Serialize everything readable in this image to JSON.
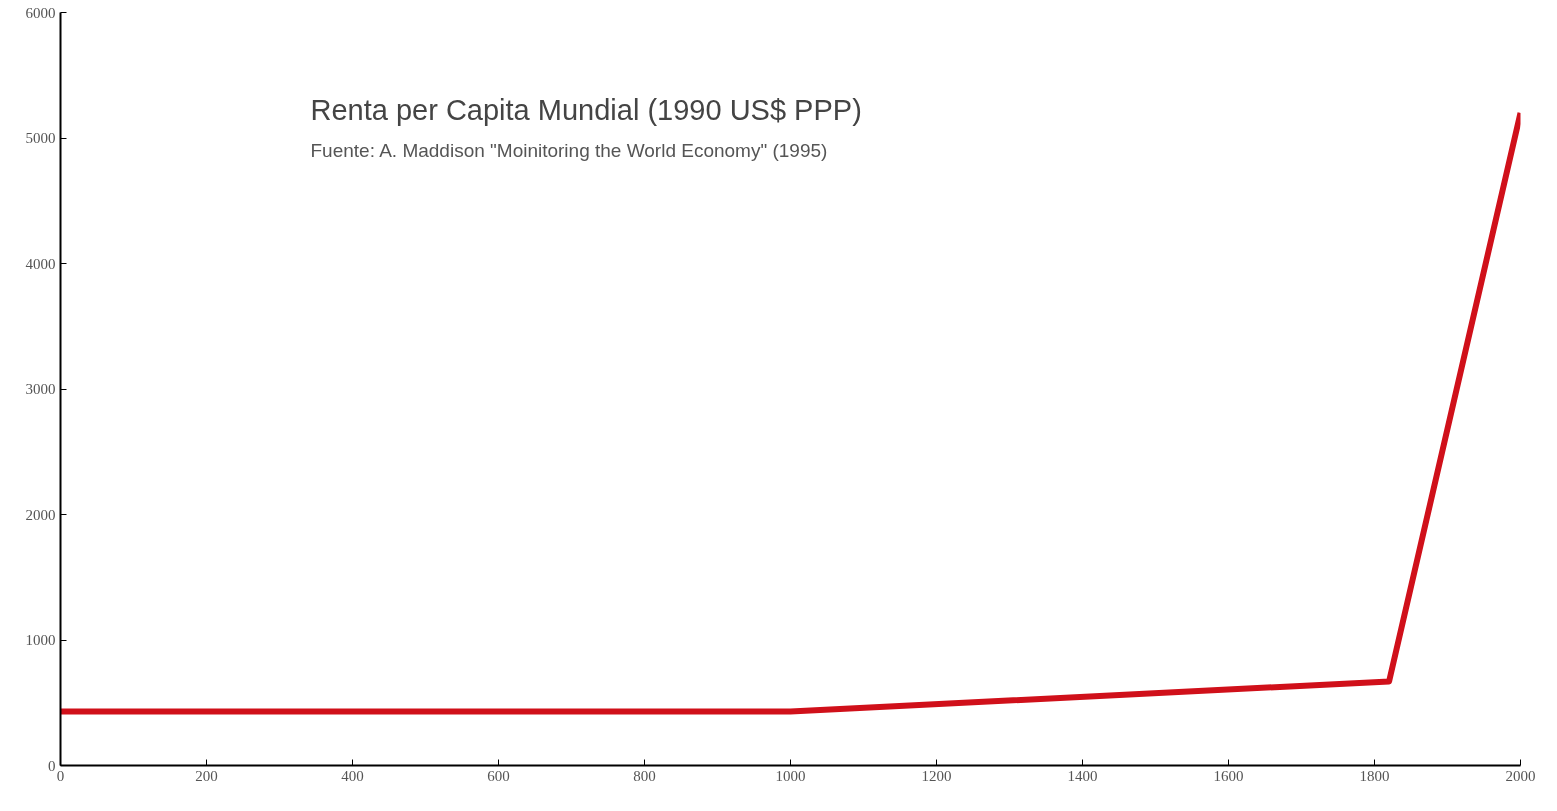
{
  "chart_data": {
    "type": "line",
    "title": "Renta per Capita Mundial (1990 US$ PPP)",
    "subtitle": "Fuente: A. Maddison \"Moinitoring the World Economy\" (1995)",
    "x": [
      0,
      1000,
      1820,
      2000
    ],
    "series": [
      {
        "color": "#d0101a",
        "values": [
          430,
          430,
          670,
          5200
        ]
      }
    ],
    "xlim": [
      0,
      2000
    ],
    "xticks": [
      0,
      200,
      400,
      600,
      800,
      1000,
      1200,
      1400,
      1600,
      1800,
      2000
    ],
    "ylim": [
      0,
      6000
    ],
    "yticks": [
      0,
      1000,
      2000,
      3000,
      4000,
      5000,
      6000
    ],
    "grid": false,
    "marker": "none",
    "line_style": "solid"
  }
}
